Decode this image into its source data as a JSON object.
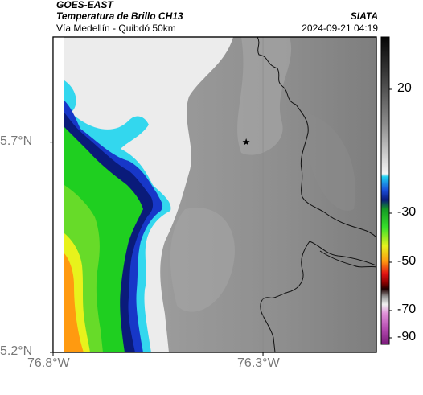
{
  "header": {
    "satellite": "GOES-EAST",
    "product": "Temperatura de Brillo CH13",
    "organization": "SIATA",
    "region": "Vía Medellín - Quibdó 50km",
    "timestamp": "2024-09-21 04:19"
  },
  "map": {
    "lat_range": [
      5.2,
      5.95
    ],
    "lon_range": [
      -76.8,
      -76.03
    ],
    "lat_ticks": [
      {
        "value": 5.7,
        "label": "5.7°N"
      },
      {
        "value": 5.2,
        "label": "5.2°N"
      }
    ],
    "lon_ticks": [
      {
        "value": -76.8,
        "label": "76.8°W"
      },
      {
        "value": -76.3,
        "label": "76.3°W"
      }
    ],
    "marker": {
      "lat": 5.7,
      "lon": -76.34,
      "symbol": "star"
    }
  },
  "colorbar": {
    "ticks": [
      {
        "value": 20,
        "label": "20"
      },
      {
        "value": -30,
        "label": "-30"
      },
      {
        "value": -50,
        "label": "-50"
      },
      {
        "value": -70,
        "label": "-70"
      },
      {
        "value": -90,
        "label": "-90"
      }
    ],
    "range": [
      -95,
      40
    ]
  },
  "colors": {
    "background_gray": "#9a9a9a",
    "cloud_white": "#ececec",
    "cyan": "#33d7ee",
    "blue": "#1737c8",
    "navy": "#0a1b7a",
    "green": "#1fcf20",
    "yellow": "#e8f21c",
    "orange": "#ff8c10",
    "red": "#d80000",
    "magenta": "#b44ab0"
  }
}
